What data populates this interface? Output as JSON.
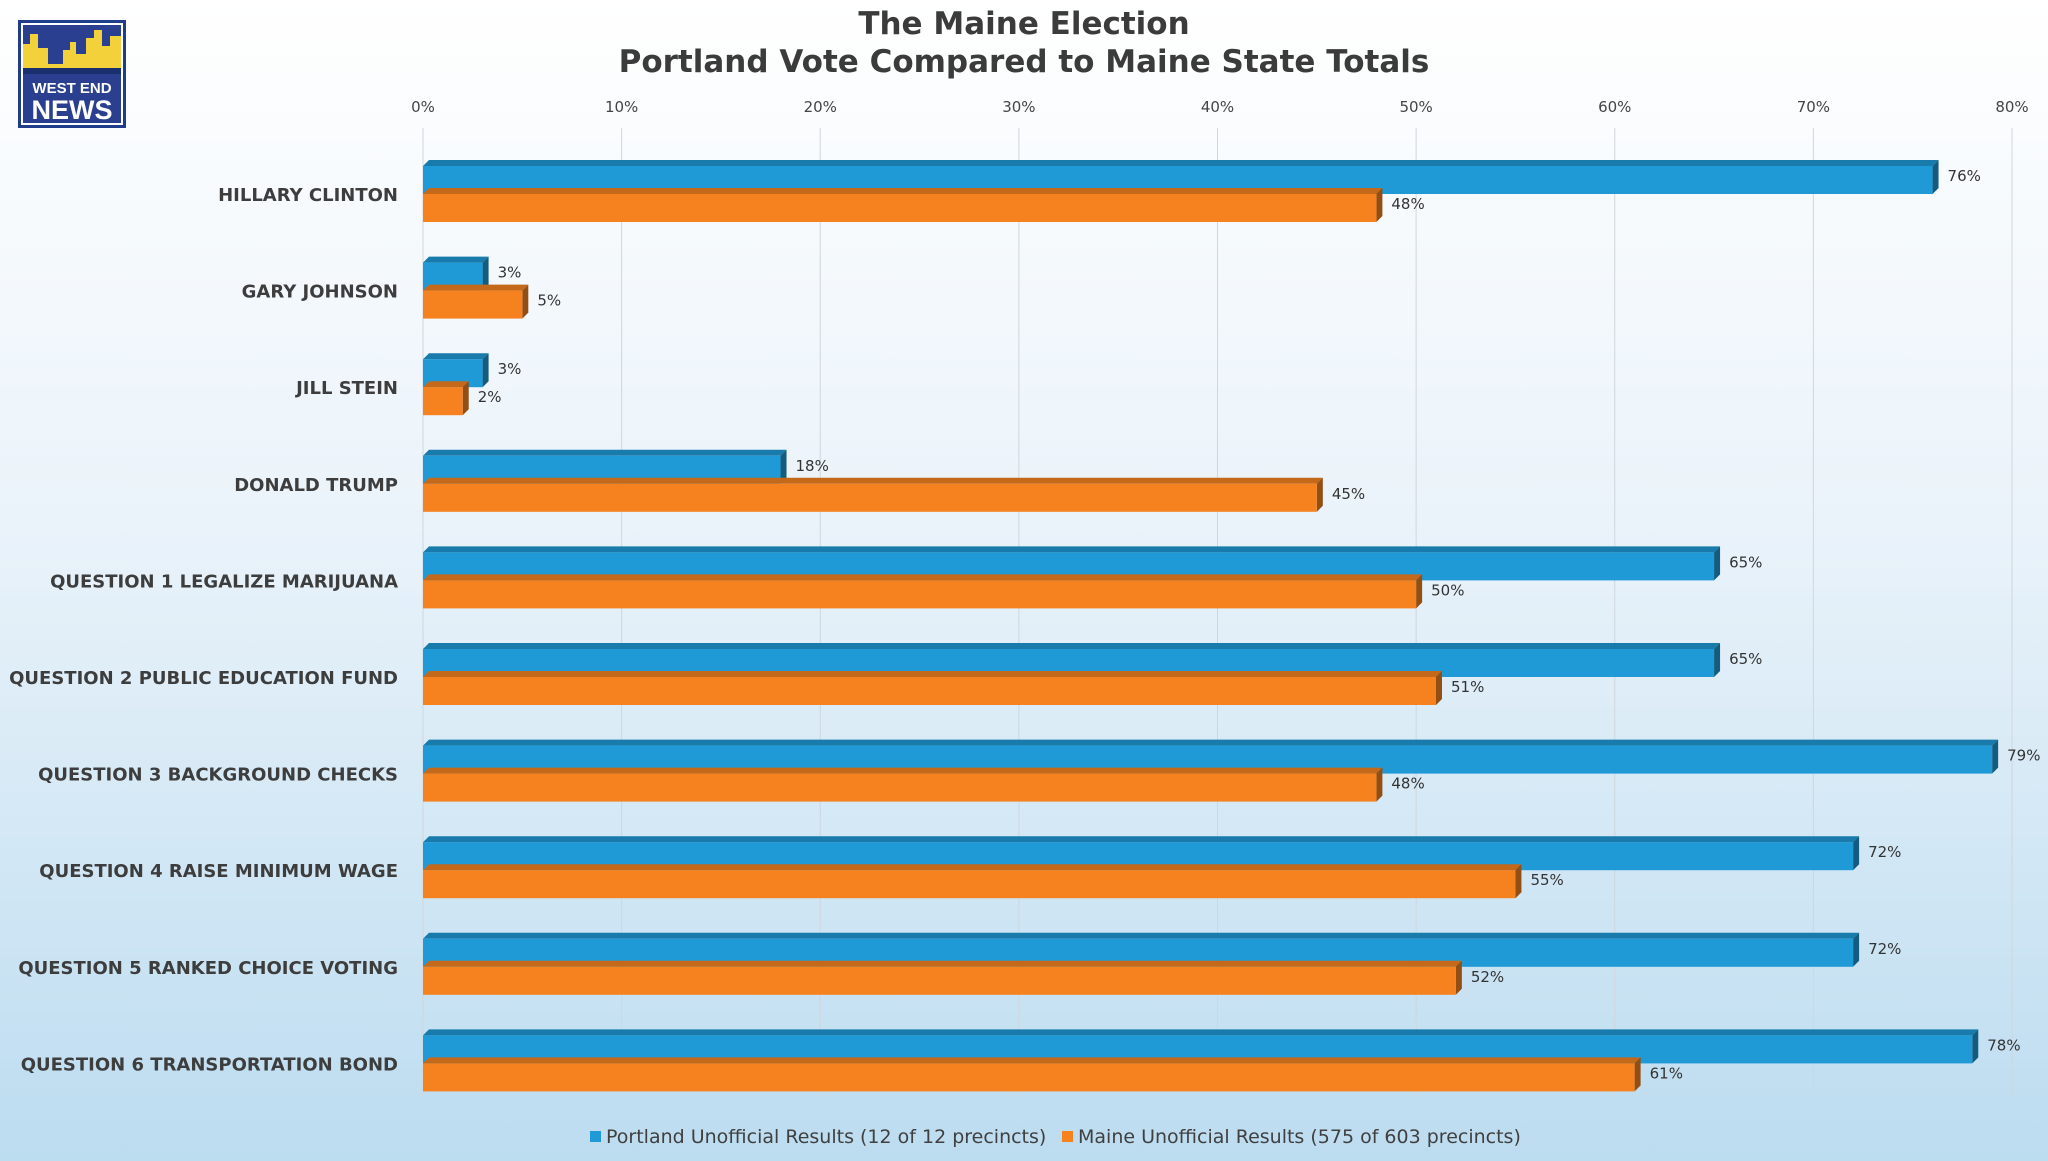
{
  "title": {
    "line1": "The Maine Election",
    "line2": "Portland Vote Compared to Maine State Totals"
  },
  "logo": {
    "line1": "WEST END",
    "line2": "NEWS"
  },
  "colors": {
    "portland": "#1f9ad6",
    "maine": "#f5821f",
    "grid": "#d0d6dc",
    "label": "#3d3d3d"
  },
  "legend": [
    {
      "label": "Portland Unofficial Results  (12 of 12 precincts)",
      "color": "#1f9ad6"
    },
    {
      "label": "Maine Unofficial Results (575 of 603 precincts)",
      "color": "#f5821f"
    }
  ],
  "chart_data": {
    "type": "bar",
    "orientation": "horizontal",
    "xlim": [
      0,
      80
    ],
    "ticks": [
      0,
      10,
      20,
      30,
      40,
      50,
      60,
      70,
      80
    ],
    "tick_labels": [
      "0%",
      "10%",
      "20%",
      "30%",
      "40%",
      "50%",
      "60%",
      "70%",
      "80%"
    ],
    "axis_position": "top",
    "grid": true,
    "legend_position": "bottom",
    "categories": [
      "HILLARY CLINTON",
      "GARY JOHNSON",
      "JILL STEIN",
      "DONALD TRUMP",
      "QUESTION 1 LEGALIZE MARIJUANA",
      "QUESTION 2 PUBLIC EDUCATION FUND",
      "QUESTION 3 BACKGROUND CHECKS",
      "QUESTION 4 RAISE MINIMUM WAGE",
      "QUESTION 5 RANKED CHOICE VOTING",
      "QUESTION 6 TRANSPORTATION BOND"
    ],
    "series": [
      {
        "name": "Portland Unofficial Results  (12 of 12 precincts)",
        "values": [
          76,
          3,
          3,
          18,
          65,
          65,
          79,
          72,
          72,
          78
        ],
        "labels": [
          "76%",
          "3%",
          "3%",
          "18%",
          "65%",
          "65%",
          "79%",
          "72%",
          "72%",
          "78%"
        ]
      },
      {
        "name": "Maine Unofficial Results (575 of 603 precincts)",
        "values": [
          48,
          5,
          2,
          45,
          50,
          51,
          48,
          55,
          52,
          61
        ],
        "labels": [
          "48%",
          "5%",
          "2%",
          "45%",
          "50%",
          "51%",
          "48%",
          "55%",
          "52%",
          "61%"
        ]
      }
    ]
  }
}
